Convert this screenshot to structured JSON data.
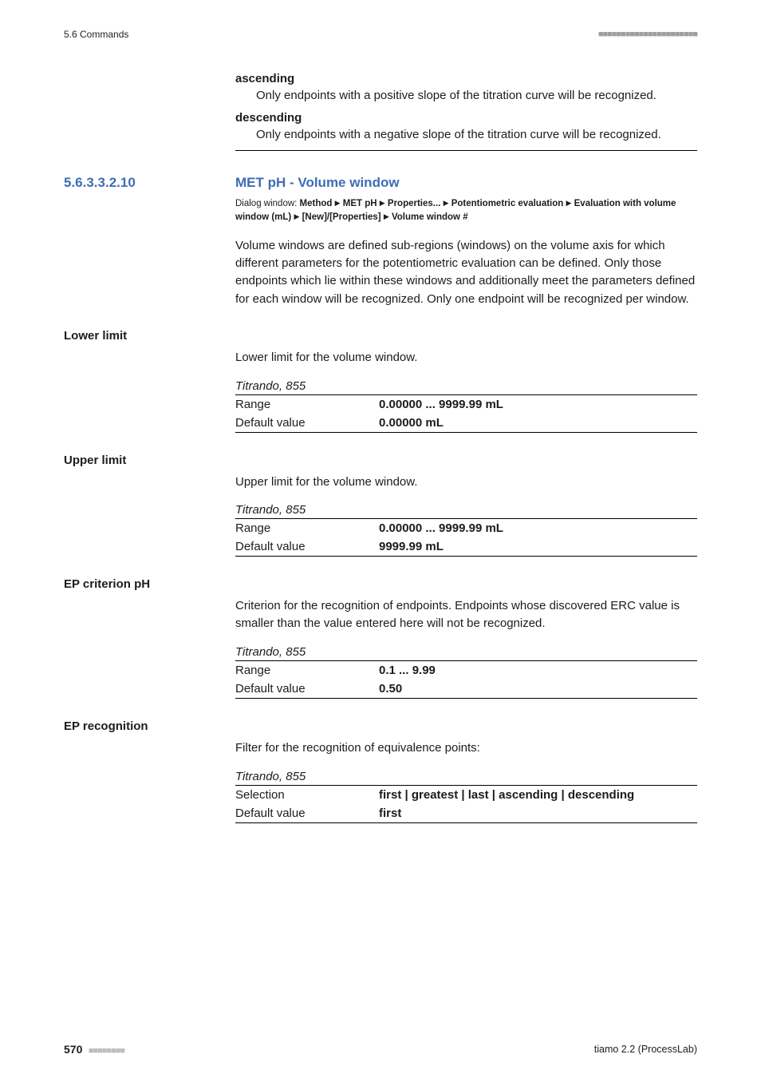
{
  "colors": {
    "heading": "#3f6db5",
    "text": "#1c1c1c",
    "rule": "#000000",
    "squares_dark": "#9e9e9e",
    "squares_light": "#bdbdbd",
    "background": "#ffffff"
  },
  "typography": {
    "body_fontsize_pt": 11,
    "heading_fontsize_pt": 13,
    "small_fontsize_pt": 8.5,
    "font_family": "Segoe UI / Helvetica Neue / Arial"
  },
  "header": {
    "left": "5.6 Commands",
    "squares": "■■■■■■■■■■■■■■■■■■■■■■"
  },
  "defs": [
    {
      "term": "ascending",
      "body": "Only endpoints with a positive slope of the titration curve will be recognized."
    },
    {
      "term": "descending",
      "body": "Only endpoints with a negative slope of the titration curve will be recognized."
    }
  ],
  "section": {
    "number": "5.6.3.3.2.10",
    "title": "MET pH - Volume window",
    "dialog_prefix": "Dialog window: ",
    "dialog_parts": [
      "Method",
      "MET pH",
      "Properties...",
      "Potentiometric evaluation",
      "Evaluation with volume window (mL)",
      "[New]/[Properties]",
      "Volume window #"
    ],
    "intro": "Volume windows are defined sub-regions (windows) on the volume axis for which different parameters for the potentiometric evaluation can be defined. Only those endpoints which lie within these windows and additionally meet the parameters defined for each window will be recognized. Only one endpoint will be recognized per window."
  },
  "fields": [
    {
      "label": "Lower limit",
      "desc": "Lower limit for the volume window.",
      "device": "Titrando, 855",
      "rows": [
        {
          "k": "Range",
          "v": "0.00000 ... 9999.99 mL"
        },
        {
          "k": "Default value",
          "v": "0.00000 mL"
        }
      ]
    },
    {
      "label": "Upper limit",
      "desc": "Upper limit for the volume window.",
      "device": "Titrando, 855",
      "rows": [
        {
          "k": "Range",
          "v": "0.00000 ... 9999.99 mL"
        },
        {
          "k": "Default value",
          "v": "9999.99 mL"
        }
      ]
    },
    {
      "label": "EP criterion pH",
      "desc": "Criterion for the recognition of endpoints. Endpoints whose discovered ERC value is smaller than the value entered here will not be recognized.",
      "device": "Titrando, 855",
      "rows": [
        {
          "k": "Range",
          "v": "0.1 ... 9.99"
        },
        {
          "k": "Default value",
          "v": "0.50"
        }
      ]
    },
    {
      "label": "EP recognition",
      "desc": "Filter for the recognition of equivalence points:",
      "device": "Titrando, 855",
      "rows": [
        {
          "k": "Selection",
          "v": "first | greatest | last | ascending | descending"
        },
        {
          "k": "Default value",
          "v": "first"
        }
      ]
    }
  ],
  "footer": {
    "page": "570",
    "squares": "■■■■■■■■",
    "product": "tiamo 2.2 (ProcessLab)"
  }
}
